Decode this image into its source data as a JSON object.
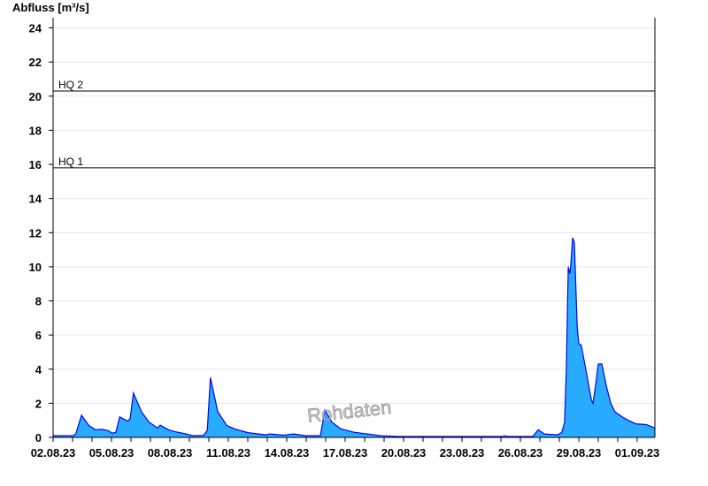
{
  "chart_data": {
    "type": "area",
    "ylabel": "Abfluss [m³/s]",
    "xlabel": "",
    "ylim": [
      0,
      24.6
    ],
    "yticks": [
      0,
      2,
      4,
      6,
      8,
      10,
      12,
      14,
      16,
      18,
      20,
      22,
      24
    ],
    "xlim": [
      "2023-08-02T00:00",
      "2023-09-01T22:00"
    ],
    "xtick_labels": [
      "02.08.23",
      "05.08.23",
      "08.08.23",
      "11.08.23",
      "14.08.23",
      "17.08.23",
      "20.08.23",
      "23.08.23",
      "26.08.23",
      "29.08.23",
      "01.09.23"
    ],
    "grid": true,
    "fill_color": "#29abff",
    "line_color": "#0000ff",
    "thresholds": [
      {
        "label": "HQ 1",
        "value": 15.8
      },
      {
        "label": "HQ 2",
        "value": 20.3
      }
    ],
    "watermark": "Rohdaten",
    "series": [
      {
        "x": [
          "2023-08-02T00:00",
          "2023-08-03T00:00",
          "2023-08-03T04:00",
          "2023-08-03T11:00",
          "2023-08-03T20:00",
          "2023-08-04T04:00",
          "2023-08-04T12:00",
          "2023-08-04T20:00",
          "2023-08-05T01:00",
          "2023-08-05T05:30",
          "2023-08-05T10:00",
          "2023-08-05T20:00",
          "2023-08-05T23:00",
          "2023-08-06T03:00",
          "2023-08-06T13:00",
          "2023-08-06T22:00",
          "2023-08-07T05:30",
          "2023-08-07T08:40",
          "2023-08-07T12:00",
          "2023-08-07T22:00",
          "2023-08-08T06:30",
          "2023-08-08T20:00",
          "2023-08-09T04:00",
          "2023-08-09T17:30",
          "2023-08-09T22:00",
          "2023-08-10T02:00",
          "2023-08-10T11:00",
          "2023-08-10T22:00",
          "2023-08-11T07:30",
          "2023-08-12T00:00",
          "2023-08-12T22:00",
          "2023-08-13T03:00",
          "2023-08-13T20:00",
          "2023-08-14T08:40",
          "2023-08-14T23:00",
          "2023-08-15T17:30",
          "2023-08-15T23:00",
          "2023-08-16T07:30",
          "2023-08-16T18:30",
          "2023-08-17T11:00",
          "2023-08-18T03:00",
          "2023-08-18T20:00",
          "2023-08-19T17:30",
          "2023-08-25T02:00",
          "2023-08-25T04:30",
          "2023-08-25T07:30",
          "2023-08-26T15:30",
          "2023-08-26T18:30",
          "2023-08-26T22:00",
          "2023-08-27T05:30",
          "2023-08-27T22:00",
          "2023-08-28T03:00",
          "2023-08-28T06:30",
          "2023-08-28T08:40",
          "2023-08-28T10:00",
          "2023-08-28T11:00",
          "2023-08-28T13:00",
          "2023-08-28T14:00",
          "2023-08-28T16:30",
          "2023-08-28T18:30",
          "2023-08-28T22:00",
          "2023-08-29T00:00",
          "2023-08-29T03:00",
          "2023-08-29T08:40",
          "2023-08-29T15:30",
          "2023-08-29T17:30",
          "2023-08-29T20:40",
          "2023-08-30T00:00",
          "2023-08-30T04:30",
          "2023-08-30T10:00",
          "2023-08-30T15:30",
          "2023-08-30T20:40",
          "2023-08-31T05:30",
          "2023-08-31T13:00",
          "2023-08-31T22:00",
          "2023-09-01T11:00",
          "2023-09-01T22:00"
        ],
        "y": [
          0.1,
          0.1,
          0.2,
          1.3,
          0.7,
          0.45,
          0.47,
          0.4,
          0.25,
          0.3,
          1.2,
          0.95,
          1.1,
          2.6,
          1.5,
          0.9,
          0.65,
          0.55,
          0.72,
          0.45,
          0.33,
          0.2,
          0.1,
          0.12,
          0.4,
          3.5,
          1.5,
          0.7,
          0.5,
          0.28,
          0.15,
          0.2,
          0.13,
          0.2,
          0.1,
          0.1,
          1.6,
          0.9,
          0.5,
          0.3,
          0.2,
          0.1,
          0.05,
          0.05,
          0.1,
          0.05,
          0.05,
          0.25,
          0.45,
          0.2,
          0.15,
          0.3,
          0.9,
          4.0,
          7.5,
          10.0,
          9.6,
          10.0,
          11.7,
          11.4,
          6.5,
          5.5,
          5.4,
          4.0,
          2.2,
          2.0,
          3.0,
          4.3,
          4.3,
          3.0,
          2.0,
          1.5,
          1.2,
          1.0,
          0.8,
          0.75,
          0.55
        ]
      }
    ]
  }
}
